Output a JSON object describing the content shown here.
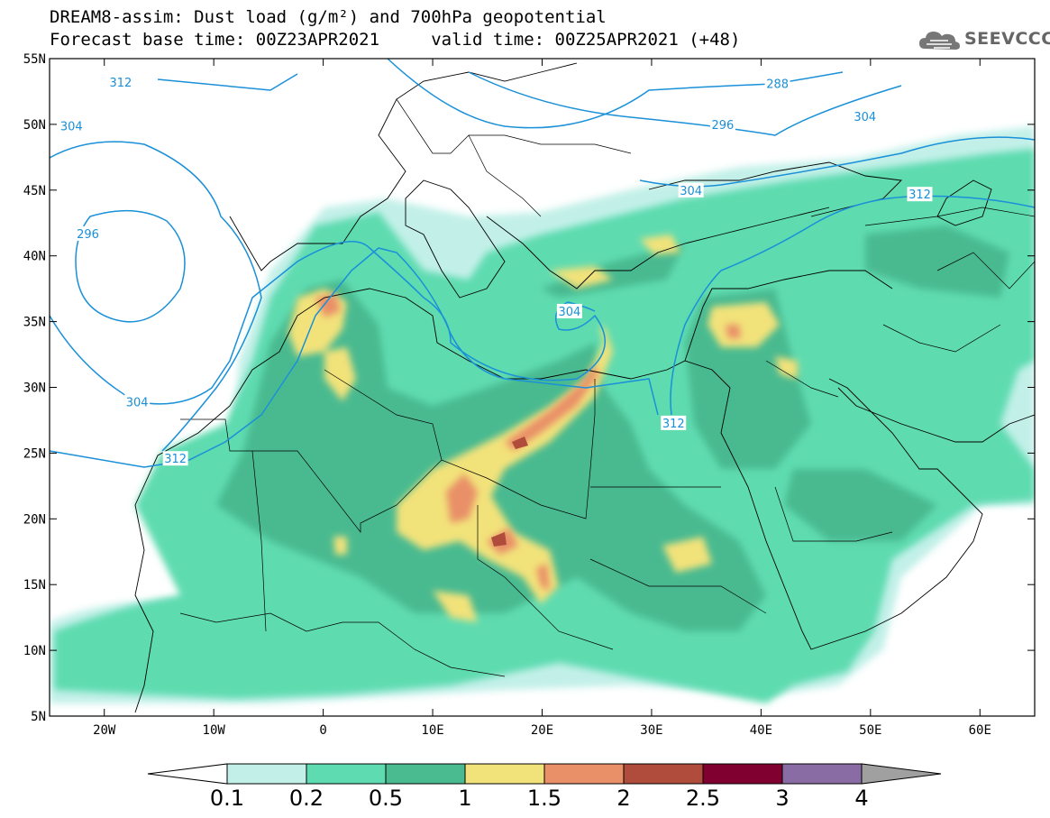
{
  "header": {
    "line1": "DREAM8-assim: Dust load (g/m²) and 700hPa geopotential",
    "line2": "Forecast base time: 00Z23APR2021     valid time: 00Z25APR2021 (+48)"
  },
  "logo": {
    "text": "SEEVCCC",
    "icon": "cloud-icon"
  },
  "map": {
    "lon_range": [
      -25,
      65
    ],
    "lat_range": [
      5,
      55
    ],
    "lon_ticks": [
      {
        "lon": -20,
        "label": "20W"
      },
      {
        "lon": -10,
        "label": "10W"
      },
      {
        "lon": 0,
        "label": "0"
      },
      {
        "lon": 10,
        "label": "10E"
      },
      {
        "lon": 20,
        "label": "20E"
      },
      {
        "lon": 30,
        "label": "30E"
      },
      {
        "lon": 40,
        "label": "40E"
      },
      {
        "lon": 50,
        "label": "50E"
      },
      {
        "lon": 60,
        "label": "60E"
      }
    ],
    "lat_ticks": [
      {
        "lat": 55,
        "label": "55N"
      },
      {
        "lat": 50,
        "label": "50N"
      },
      {
        "lat": 45,
        "label": "45N"
      },
      {
        "lat": 40,
        "label": "40N"
      },
      {
        "lat": 35,
        "label": "35N"
      },
      {
        "lat": 30,
        "label": "30N"
      },
      {
        "lat": 25,
        "label": "25N"
      },
      {
        "lat": 20,
        "label": "20N"
      },
      {
        "lat": 15,
        "label": "15N"
      },
      {
        "lat": 10,
        "label": "10N"
      },
      {
        "lat": 5,
        "label": "5N"
      }
    ],
    "contour_labels": [
      {
        "text": "312",
        "lon": -18.5,
        "lat": 53.2
      },
      {
        "text": "288",
        "lon": 41.5,
        "lat": 53.1
      },
      {
        "text": "296",
        "lon": 36.5,
        "lat": 50.0
      },
      {
        "text": "304",
        "lon": 49.5,
        "lat": 50.6
      },
      {
        "text": "304",
        "lon": -23.0,
        "lat": 49.9
      },
      {
        "text": "304",
        "lon": 33.6,
        "lat": 45.0
      },
      {
        "text": "312",
        "lon": 54.5,
        "lat": 44.7
      },
      {
        "text": "296",
        "lon": -21.5,
        "lat": 41.7
      },
      {
        "text": "304",
        "lon": 22.5,
        "lat": 35.8
      },
      {
        "text": "304",
        "lon": -17.0,
        "lat": 28.9
      },
      {
        "text": "312",
        "lon": 32.0,
        "lat": 27.3
      },
      {
        "text": "312",
        "lon": -13.5,
        "lat": 24.6
      }
    ],
    "colors": {
      "c01": "#c2f0e8",
      "c02": "#5edbb0",
      "c05": "#4aba90",
      "c1": "#f2e27a",
      "c15": "#e99068",
      "c2": "#b04c3c",
      "contour": "#1a90d8",
      "border": "#000000"
    }
  },
  "colorbar": {
    "labels": [
      "0.1",
      "0.2",
      "0.5",
      "1",
      "1.5",
      "2",
      "2.5",
      "3",
      "4"
    ],
    "colors": [
      "#c2f0e8",
      "#5edbb0",
      "#4aba90",
      "#f2e27a",
      "#e99068",
      "#b04c3c",
      "#800030",
      "#8a6ca4"
    ],
    "under_color": "#ffffff",
    "over_color": "#a0a0a0"
  }
}
